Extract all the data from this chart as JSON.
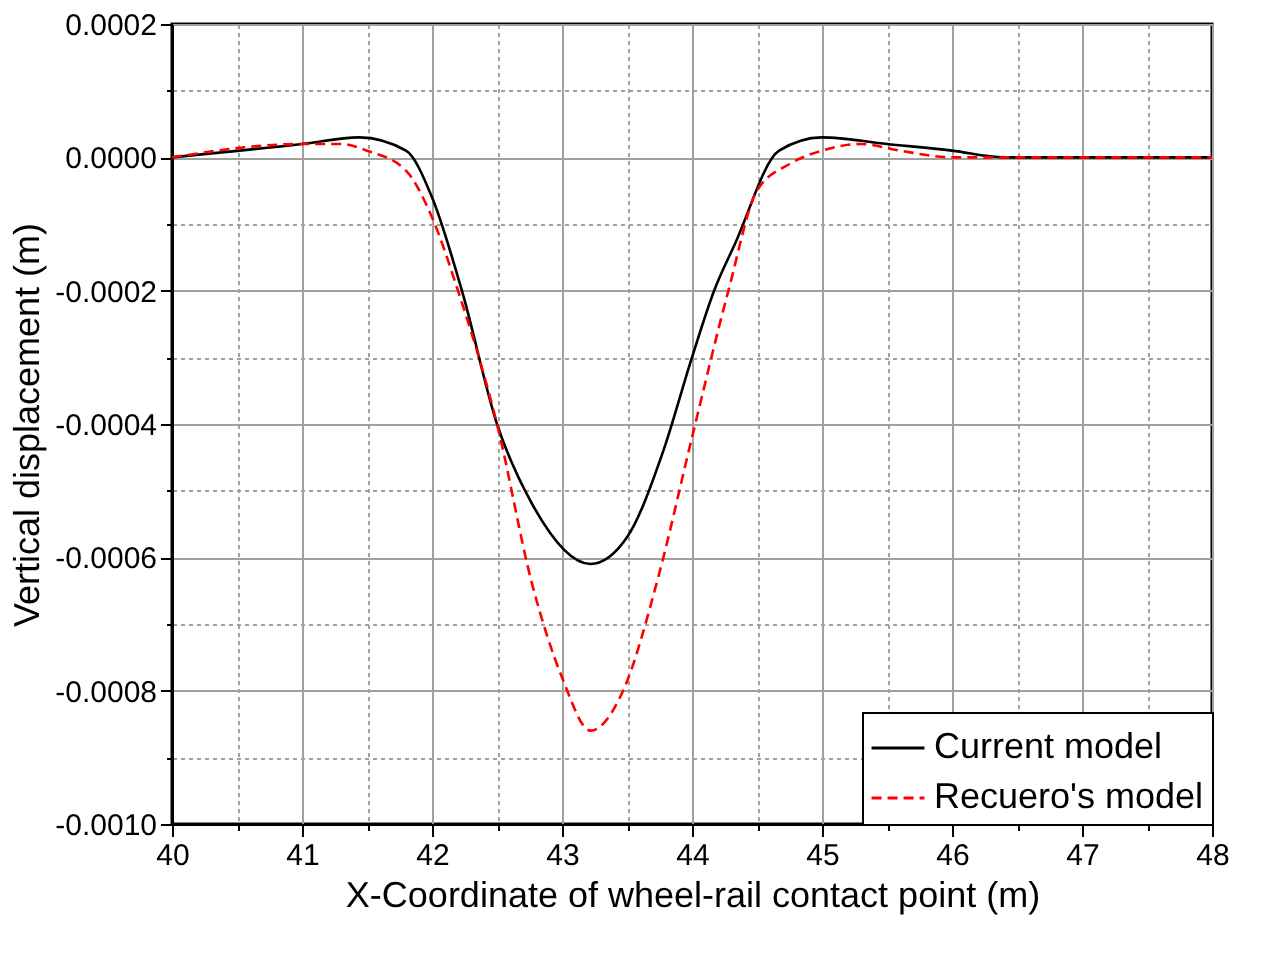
{
  "chart_data": {
    "type": "line",
    "xlabel": "X-Coordinate of wheel-rail contact point (m)",
    "ylabel": "Vertical displacement (m)",
    "xlim": [
      40,
      48
    ],
    "ylim": [
      -0.001,
      0.0002
    ],
    "xticks": [
      40,
      {
        "value": 40.5,
        "label": null
      },
      41,
      {
        "value": 41.5,
        "label": null
      },
      42,
      {
        "value": 42.5,
        "label": null
      },
      43,
      {
        "value": 43.5,
        "label": null
      },
      44,
      {
        "value": 44.5,
        "label": null
      },
      45,
      {
        "value": 45.5,
        "label": null
      },
      46,
      {
        "value": 46.5,
        "label": null
      },
      47,
      {
        "value": 47.5,
        "label": null
      },
      48
    ],
    "yticks": [
      {
        "value": -0.001,
        "label": "-0.0010"
      },
      {
        "value": -0.0009,
        "label": null
      },
      {
        "value": -0.0008,
        "label": "-0.0008"
      },
      {
        "value": -0.0007,
        "label": null
      },
      {
        "value": -0.0006,
        "label": "-0.0006"
      },
      {
        "value": -0.0005,
        "label": null
      },
      {
        "value": -0.0004,
        "label": "-0.0004"
      },
      {
        "value": -0.0003,
        "label": null
      },
      {
        "value": -0.0002,
        "label": "-0.0002"
      },
      {
        "value": -0.0001,
        "label": null
      },
      {
        "value": 0,
        "label": "0.0000"
      },
      {
        "value": 0.0001,
        "label": null
      },
      {
        "value": 0.0002,
        "label": "0.0002"
      }
    ],
    "grid": true,
    "legend": "bottom right",
    "series": [
      {
        "name": "Current model",
        "color": "#000000",
        "line_style": "solid",
        "x": [
          40,
          41,
          41.44,
          41.8,
          42,
          42.23,
          42.5,
          42.77,
          43.22,
          43.5,
          43.78,
          44,
          44.17,
          44.33,
          44.67,
          45,
          45.5,
          46,
          46.4,
          47,
          48
        ],
        "values": [
          0,
          2e-05,
          3e-05,
          1e-05,
          -6e-05,
          -0.0002,
          -0.0004,
          -0.00052,
          -0.00061,
          -0.00057,
          -0.00044,
          -0.0003,
          -0.0002,
          -0.00013,
          1e-05,
          3e-05,
          2e-05,
          1e-05,
          0,
          0,
          0
        ]
      },
      {
        "name": "Recuero's model",
        "color": "#ff0000",
        "line_style": "dashed",
        "x": [
          40,
          41,
          41.3,
          41.5,
          41.8,
          42,
          42.2,
          42.5,
          42.77,
          43,
          43.22,
          43.47,
          43.74,
          44,
          44.28,
          44.5,
          44.75,
          45,
          45.3,
          45.6,
          46,
          46.5,
          47,
          48
        ],
        "values": [
          0,
          2e-05,
          2e-05,
          1e-05,
          -2e-05,
          -9e-05,
          -0.0002,
          -0.0004,
          -0.00064,
          -0.00078,
          -0.00086,
          -0.0008,
          -0.00063,
          -0.00042,
          -0.0002,
          -5e-05,
          -1e-05,
          1e-05,
          2e-05,
          1e-05,
          0,
          0,
          0,
          0
        ]
      }
    ]
  }
}
